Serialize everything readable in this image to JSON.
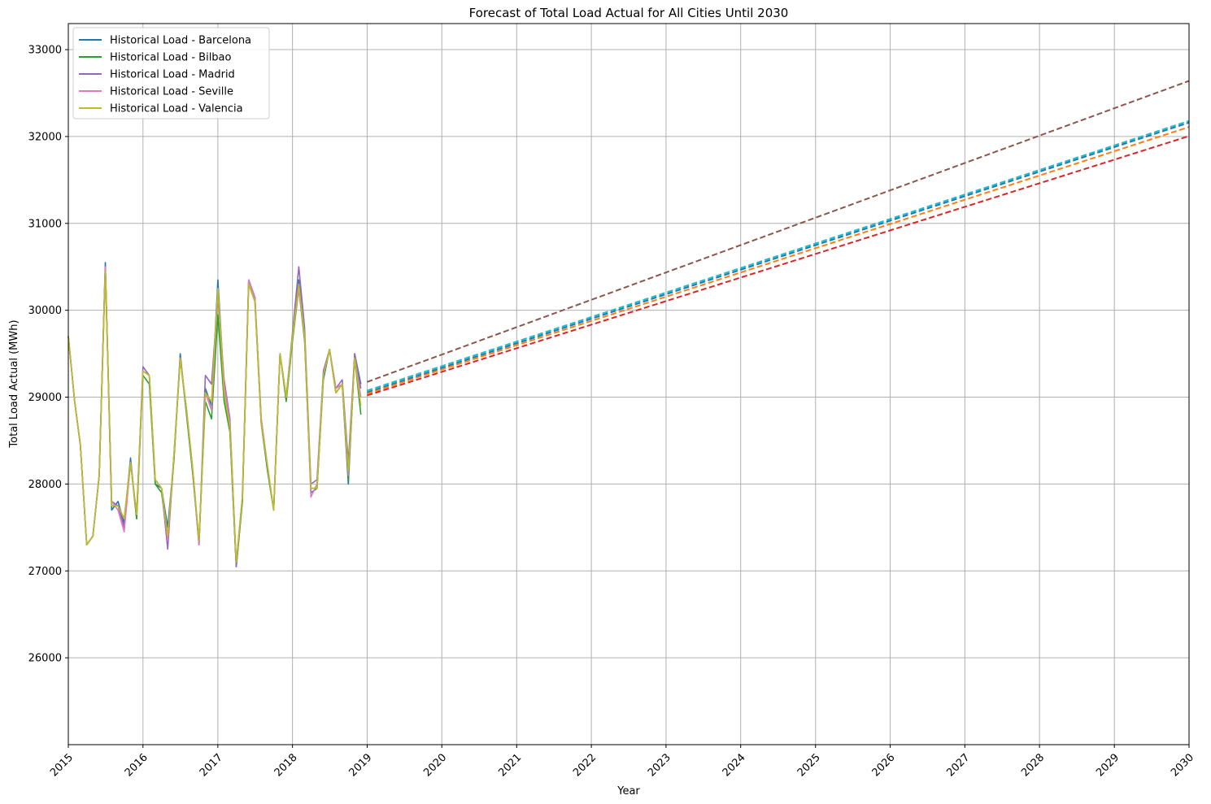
{
  "chart_data": {
    "type": "line",
    "title": "Forecast of Total Load Actual for All Cities Until 2030",
    "xlabel": "Year",
    "ylabel": "Total Load Actual (MWh)",
    "xlim": [
      "2015-01-01",
      "2030-01-01"
    ],
    "ylim": [
      25000,
      33300
    ],
    "x_ticks": [
      "2015",
      "2016",
      "2017",
      "2018",
      "2019",
      "2020",
      "2021",
      "2022",
      "2023",
      "2024",
      "2025",
      "2026",
      "2027",
      "2028",
      "2029",
      "2030"
    ],
    "y_ticks": [
      26000,
      27000,
      28000,
      29000,
      30000,
      31000,
      32000,
      33000
    ],
    "grid": true,
    "legend_position": "top-left",
    "months": [
      "2015-01",
      "2015-02",
      "2015-03",
      "2015-04",
      "2015-05",
      "2015-06",
      "2015-07",
      "2015-08",
      "2015-09",
      "2015-10",
      "2015-11",
      "2015-12",
      "2016-01",
      "2016-02",
      "2016-03",
      "2016-04",
      "2016-05",
      "2016-06",
      "2016-07",
      "2016-08",
      "2016-09",
      "2016-10",
      "2016-11",
      "2016-12",
      "2017-01",
      "2017-02",
      "2017-03",
      "2017-04",
      "2017-05",
      "2017-06",
      "2017-07",
      "2017-08",
      "2017-09",
      "2017-10",
      "2017-11",
      "2017-12",
      "2018-01",
      "2018-02",
      "2018-03",
      "2018-04",
      "2018-05",
      "2018-06",
      "2018-07",
      "2018-08",
      "2018-09",
      "2018-10",
      "2018-11",
      "2018-12"
    ],
    "historical_series": [
      {
        "name": "Historical Load -  Barcelona",
        "color": "#1f77b4",
        "values": [
          29700,
          28950,
          28450,
          27300,
          27400,
          28100,
          30550,
          27700,
          27800,
          27550,
          28300,
          27600,
          29300,
          29250,
          28000,
          27950,
          27500,
          28300,
          29500,
          28800,
          28100,
          27300,
          29100,
          28900,
          30350,
          29100,
          28600,
          27050,
          27800,
          30350,
          30150,
          28700,
          28150,
          27700,
          29500,
          29000,
          29700,
          30350,
          29700,
          27900,
          27950,
          29200,
          29550,
          29050,
          29150,
          28000,
          29500,
          29150
        ]
      },
      {
        "name": "Historical Load - Bilbao",
        "color": "#2ca02c",
        "values": [
          29700,
          28950,
          28450,
          27300,
          27400,
          28100,
          30500,
          27750,
          27750,
          27600,
          28250,
          27600,
          29250,
          29150,
          28000,
          27900,
          27350,
          28300,
          29450,
          28800,
          28100,
          27350,
          28950,
          28750,
          29950,
          28950,
          28600,
          27050,
          27800,
          30300,
          30100,
          28700,
          28150,
          27700,
          29500,
          28950,
          29650,
          30250,
          29650,
          27950,
          27950,
          29250,
          29550,
          29050,
          29150,
          28050,
          29450,
          28800
        ]
      },
      {
        "name": "Historical Load - Madrid",
        "color": "#9467bd",
        "values": [
          29700,
          28950,
          28450,
          27300,
          27400,
          28100,
          30500,
          27800,
          27750,
          27500,
          28250,
          27650,
          29350,
          29250,
          28050,
          27950,
          27250,
          28350,
          29450,
          28850,
          28150,
          27300,
          29250,
          29150,
          30150,
          29200,
          28750,
          27050,
          27850,
          30350,
          30150,
          28750,
          28200,
          27700,
          29500,
          29000,
          29750,
          30500,
          29800,
          28000,
          28050,
          29300,
          29550,
          29100,
          29200,
          28250,
          29500,
          29100
        ]
      },
      {
        "name": "Historical Load - Seville",
        "color": "#e377c2",
        "values": [
          29700,
          28950,
          28450,
          27300,
          27400,
          28100,
          30500,
          27800,
          27700,
          27450,
          28250,
          27650,
          29300,
          29250,
          28050,
          27950,
          27350,
          28350,
          29450,
          28850,
          28150,
          27300,
          29050,
          28850,
          30250,
          29150,
          28700,
          27100,
          27850,
          30350,
          30150,
          28750,
          28200,
          27700,
          29500,
          29000,
          29700,
          30250,
          29700,
          27850,
          28000,
          29250,
          29550,
          29100,
          29150,
          28100,
          29450,
          29000
        ]
      },
      {
        "name": "Historical Load - Valencia",
        "color": "#bcbd22",
        "values": [
          29700,
          28950,
          28450,
          27300,
          27400,
          28100,
          30450,
          27750,
          27750,
          27600,
          28250,
          27650,
          29300,
          29250,
          28050,
          27950,
          27400,
          28350,
          29450,
          28850,
          28150,
          27350,
          29050,
          28950,
          30250,
          29050,
          28650,
          27100,
          27850,
          30300,
          30100,
          28700,
          28200,
          27700,
          29500,
          29000,
          29700,
          30300,
          29700,
          27950,
          27950,
          29250,
          29550,
          29050,
          29150,
          28150,
          29450,
          28900
        ]
      }
    ],
    "forecast_series": [
      {
        "color": "#17becf",
        "x": [
          "2019-01-01",
          "2030-01-01"
        ],
        "values": [
          29075,
          32180
        ]
      },
      {
        "color": "#1f77b4",
        "x": [
          "2019-01-01",
          "2030-01-01"
        ],
        "values": [
          29055,
          32160
        ]
      },
      {
        "color": "#ff7f0e",
        "x": [
          "2019-01-01",
          "2030-01-01"
        ],
        "values": [
          29040,
          32110
        ]
      },
      {
        "color": "#d62728",
        "x": [
          "2019-01-01",
          "2030-01-01"
        ],
        "values": [
          29020,
          32005
        ]
      },
      {
        "color": "#8c564b",
        "x": [
          "2019-01-01",
          "2030-01-01"
        ],
        "values": [
          29175,
          32640
        ]
      }
    ]
  }
}
